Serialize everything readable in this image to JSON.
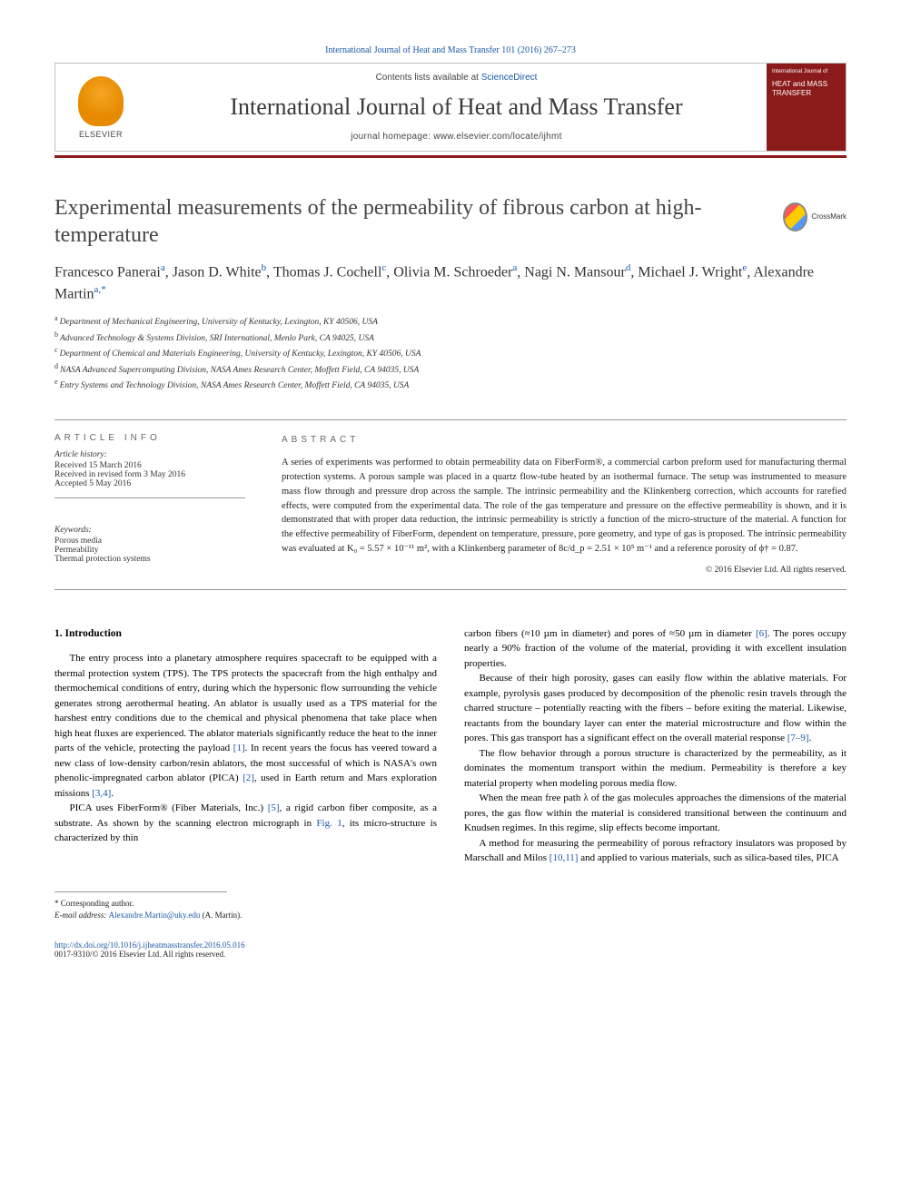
{
  "citation": "International Journal of Heat and Mass Transfer 101 (2016) 267–273",
  "header": {
    "contents_prefix": "Contents lists available at ",
    "contents_link": "ScienceDirect",
    "journal_name": "International Journal of Heat and Mass Transfer",
    "homepage_prefix": "journal homepage: ",
    "homepage_url": "www.elsevier.com/locate/ijhmt",
    "publisher": "ELSEVIER",
    "cover_text": "HEAT and MASS TRANSFER"
  },
  "crossmark": "CrossMark",
  "title": "Experimental measurements of the permeability of fibrous carbon at high-temperature",
  "authors_html": "Francesco Panerai<span class='aff'>a</span>, Jason D. White<span class='aff'>b</span>, Thomas J. Cochell<span class='aff'>c</span>, Olivia M. Schroeder<span class='aff'>a</span>, Nagi N. Mansour<span class='aff'>d</span>, Michael J. Wright<span class='aff'>e</span>, Alexandre Martin<span class='aff'>a,</span><span class='corr-star'>*</span>",
  "affiliations": [
    {
      "label": "a",
      "text": "Department of Mechanical Engineering, University of Kentucky, Lexington, KY 40506, USA"
    },
    {
      "label": "b",
      "text": "Advanced Technology & Systems Division, SRI International, Menlo Park, CA 94025, USA"
    },
    {
      "label": "c",
      "text": "Department of Chemical and Materials Engineering, University of Kentucky, Lexington, KY 40506, USA"
    },
    {
      "label": "d",
      "text": "NASA Advanced Supercomputing Division, NASA Ames Research Center, Moffett Field, CA 94035, USA"
    },
    {
      "label": "e",
      "text": "Entry Systems and Technology Division, NASA Ames Research Center, Moffett Field, CA 94035, USA"
    }
  ],
  "article_info": {
    "heading": "ARTICLE INFO",
    "history_label": "Article history:",
    "received": "Received 15 March 2016",
    "revised": "Received in revised form 3 May 2016",
    "accepted": "Accepted 5 May 2016",
    "keywords_label": "Keywords:",
    "keywords": [
      "Porous media",
      "Permeability",
      "Thermal protection systems"
    ]
  },
  "abstract": {
    "heading": "ABSTRACT",
    "text": "A series of experiments was performed to obtain permeability data on FiberForm®, a commercial carbon preform used for manufacturing thermal protection systems. A porous sample was placed in a quartz flow-tube heated by an isothermal furnace. The setup was instrumented to measure mass flow through and pressure drop across the sample. The intrinsic permeability and the Klinkenberg correction, which accounts for rarefied effects, were computed from the experimental data. The role of the gas temperature and pressure on the effective permeability is shown, and it is demonstrated that with proper data reduction, the intrinsic permeability is strictly a function of the micro-structure of the material. A function for the effective permeability of FiberForm, dependent on temperature, pressure, pore geometry, and type of gas is proposed. The intrinsic permeability was evaluated at K₀ = 5.57 × 10⁻¹¹ m², with a Klinkenberg parameter of 8c/d_p = 2.51 × 10⁵ m⁻¹ and a reference porosity of ϕ† = 0.87.",
    "copyright": "© 2016 Elsevier Ltd. All rights reserved."
  },
  "body": {
    "section1_heading": "1. Introduction",
    "col1_p1": "The entry process into a planetary atmosphere requires spacecraft to be equipped with a thermal protection system (TPS). The TPS protects the spacecraft from the high enthalpy and thermochemical conditions of entry, during which the hypersonic flow surrounding the vehicle generates strong aerothermal heating. An ablator is usually used as a TPS material for the harshest entry conditions due to the chemical and physical phenomena that take place when high heat fluxes are experienced. The ablator materials significantly reduce the heat to the inner parts of the vehicle, protecting the payload [1]. In recent years the focus has veered toward a new class of low-density carbon/resin ablators, the most successful of which is NASA's own phenolic-impregnated carbon ablator (PICA) [2], used in Earth return and Mars exploration missions [3,4].",
    "col1_p2": "PICA uses FiberForm® (Fiber Materials, Inc.) [5], a rigid carbon fiber composite, as a substrate. As shown by the scanning electron micrograph in Fig. 1, its micro-structure is characterized by thin",
    "col2_p1": "carbon fibers (≈10 µm in diameter) and pores of ≈50 µm in diameter [6]. The pores occupy nearly a 90% fraction of the volume of the material, providing it with excellent insulation properties.",
    "col2_p2": "Because of their high porosity, gases can easily flow within the ablative materials. For example, pyrolysis gases produced by decomposition of the phenolic resin travels through the charred structure – potentially reacting with the fibers – before exiting the material. Likewise, reactants from the boundary layer can enter the material microstructure and flow within the pores. This gas transport has a significant effect on the overall material response [7–9].",
    "col2_p3": "The flow behavior through a porous structure is characterized by the permeability, as it dominates the momentum transport within the medium. Permeability is therefore a key material property when modeling porous media flow.",
    "col2_p4": "When the mean free path λ of the gas molecules approaches the dimensions of the material pores, the gas flow within the material is considered transitional between the continuum and Knudsen regimes. In this regime, slip effects become important.",
    "col2_p5": "A method for measuring the permeability of porous refractory insulators was proposed by Marschall and Milos [10,11] and applied to various materials, such as silica-based tiles, PICA"
  },
  "footer": {
    "corr_label": "* Corresponding author.",
    "email_label": "E-mail address: ",
    "email": "Alexandre.Martin@uky.edu",
    "email_name": " (A. Martin).",
    "doi_url": "http://dx.doi.org/10.1016/j.ijheatmasstransfer.2016.05.016",
    "issn_copyright": "0017-9310/© 2016 Elsevier Ltd. All rights reserved."
  },
  "colors": {
    "link": "#1a58a5",
    "journal_red": "#8b1a1a",
    "elsevier_orange": "#e68a00",
    "text": "#222222",
    "border": "#999999"
  }
}
